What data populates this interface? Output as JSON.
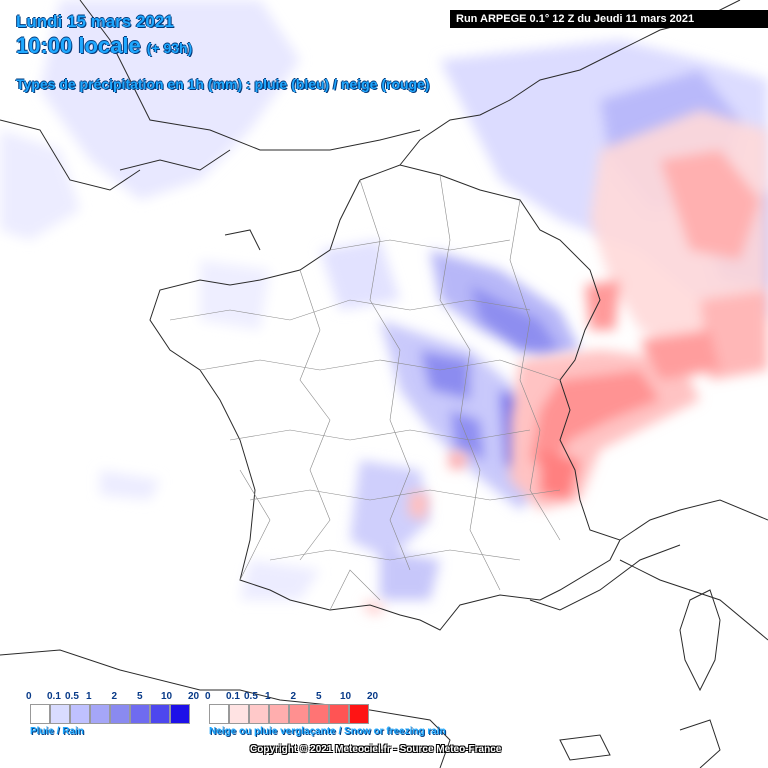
{
  "header": {
    "date": "Lundi 15 mars 2021",
    "time": "10:00 locale",
    "offset": "(+ 93h)",
    "subtitle": "Types de précipitation en 1h (mm) : pluie (bleu) / neige (rouge)"
  },
  "run_banner": "Run ARPEGE 0.1° 12 Z du Jeudi 11 mars 2021",
  "legend": {
    "rain": {
      "caption": "Pluie / Rain",
      "labels": [
        "0",
        "0.1",
        "0.5",
        "1",
        "2",
        "5",
        "10",
        "20"
      ],
      "colors": [
        "#ffffff",
        "#d9dcff",
        "#bfc1ff",
        "#a5a6f7",
        "#8a8af0",
        "#6f6bf0",
        "#4d47ee",
        "#1d10e8"
      ]
    },
    "snow": {
      "caption": "Neige ou pluie verglaçante / Snow or freezing rain",
      "labels": [
        "0",
        "0.1",
        "0.5",
        "1",
        "2",
        "5",
        "10",
        "20"
      ],
      "colors": [
        "#ffffff",
        "#ffe3e3",
        "#ffc9c9",
        "#ffaeae",
        "#ff9090",
        "#ff7474",
        "#ff5454",
        "#ff1414"
      ]
    }
  },
  "copyright": "Copyright © 2021 Meteociel.fr - Source Meteo-France",
  "colors": {
    "rain_light": "#dcdcff",
    "rain_mid": "#9c9cf2",
    "rain_strong": "#6e6cf0",
    "snow_light": "#ffd6d6",
    "snow_mid": "#ff9a9a",
    "snow_strong": "#ff6e6e",
    "title": "#1fa8ff"
  }
}
